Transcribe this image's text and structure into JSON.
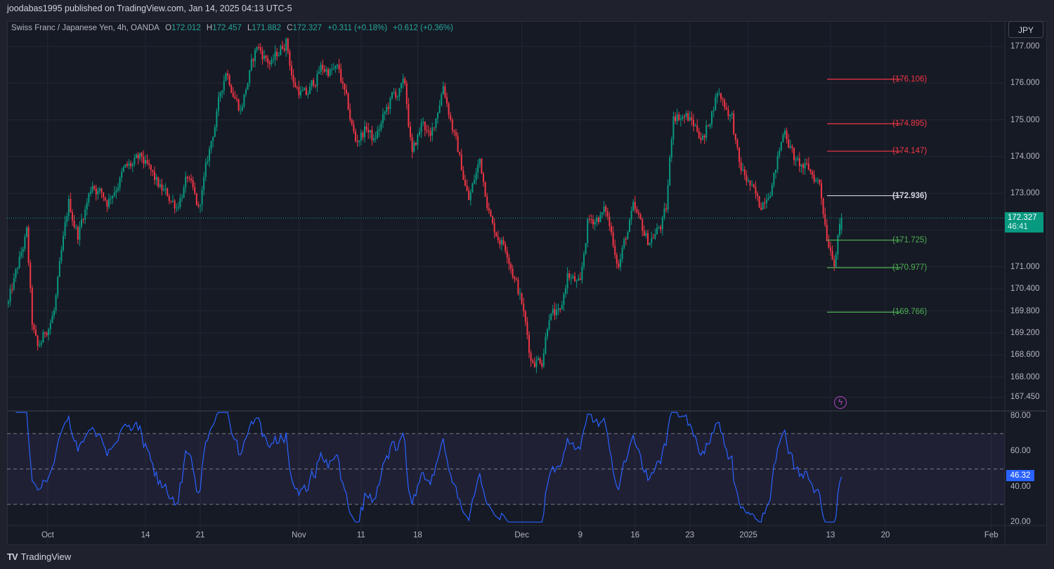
{
  "published": "joodabas1995 published on TradingView.com, Jan 14, 2025 04:13 UTC-5",
  "legend": {
    "symbol": "Swiss Franc / Japanese Yen, 4h, OANDA",
    "o_label": "O",
    "o": "172.012",
    "h_label": "H",
    "h": "172.457",
    "l_label": "L",
    "l": "171.882",
    "c_label": "C",
    "c": "172.327",
    "change": "+0.311 (+0.18%)",
    "change2": "+0.612 (+0.36%)"
  },
  "currency_button": "JPY",
  "current_price": {
    "value": "172.327",
    "countdown": "46:41"
  },
  "brand": "TradingView",
  "colors": {
    "up": "#089981",
    "down": "#f23645",
    "rsi": "#2962ff",
    "resistance": "#f23645",
    "pivot": "#d1d4dc",
    "support": "#4caf50"
  },
  "chart_data": {
    "type": "candlestick",
    "title": "Swiss Franc / Japanese Yen, 4h, OANDA",
    "ylim": [
      167.2,
      177.4
    ],
    "price_ticks": [
      "177.000",
      "176.000",
      "175.000",
      "174.000",
      "173.000",
      "171.000",
      "170.400",
      "169.800",
      "169.200",
      "168.600",
      "168.000",
      "167.450"
    ],
    "price_tick_values": [
      177,
      176,
      175,
      174,
      173,
      171,
      170.4,
      169.8,
      169.2,
      168.6,
      168.0,
      167.45
    ],
    "x_ticks": [
      {
        "label": "Oct",
        "bar": 21.5
      },
      {
        "label": "14",
        "bar": 75
      },
      {
        "label": "21",
        "bar": 105
      },
      {
        "label": "Nov",
        "bar": 159
      },
      {
        "label": "11",
        "bar": 193
      },
      {
        "label": "18",
        "bar": 224
      },
      {
        "label": "Dec",
        "bar": 281
      },
      {
        "label": "9",
        "bar": 313
      },
      {
        "label": "16",
        "bar": 343
      },
      {
        "label": "23",
        "bar": 373
      },
      {
        "label": "2025",
        "bar": 405
      },
      {
        "label": "13",
        "bar": 450
      },
      {
        "label": "20",
        "bar": 480
      },
      {
        "label": "Feb",
        "bar": 538
      }
    ],
    "bar_count": 457,
    "approx_close_path": [
      [
        0,
        170.0
      ],
      [
        10,
        171.9
      ],
      [
        13,
        169.4
      ],
      [
        16,
        168.7
      ],
      [
        25,
        169.8
      ],
      [
        33,
        172.7
      ],
      [
        38,
        171.9
      ],
      [
        46,
        173.3
      ],
      [
        54,
        172.8
      ],
      [
        63,
        173.6
      ],
      [
        73,
        173.9
      ],
      [
        83,
        173.1
      ],
      [
        92,
        172.7
      ],
      [
        98,
        173.4
      ],
      [
        104,
        172.5
      ],
      [
        111,
        174.4
      ],
      [
        119,
        176.4
      ],
      [
        127,
        175.3
      ],
      [
        136,
        177.0
      ],
      [
        144,
        176.5
      ],
      [
        152,
        177.2
      ],
      [
        156,
        176.0
      ],
      [
        163,
        175.6
      ],
      [
        171,
        176.4
      ],
      [
        181,
        176.3
      ],
      [
        190,
        174.4
      ],
      [
        196,
        174.8
      ],
      [
        200,
        174.4
      ],
      [
        210,
        175.6
      ],
      [
        217,
        175.9
      ],
      [
        221,
        174.0
      ],
      [
        227,
        175.0
      ],
      [
        231,
        174.4
      ],
      [
        238,
        176.0
      ],
      [
        244,
        174.6
      ],
      [
        252,
        172.8
      ],
      [
        258,
        173.9
      ],
      [
        265,
        172.1
      ],
      [
        273,
        171.5
      ],
      [
        281,
        170.0
      ],
      [
        286,
        168.5
      ],
      [
        292,
        168.5
      ],
      [
        296,
        169.8
      ],
      [
        302,
        169.6
      ],
      [
        306,
        170.8
      ],
      [
        313,
        170.4
      ],
      [
        317,
        172.2
      ],
      [
        327,
        172.5
      ],
      [
        334,
        171.1
      ],
      [
        342,
        172.5
      ],
      [
        350,
        171.7
      ],
      [
        357,
        172.1
      ],
      [
        360,
        172.5
      ],
      [
        364,
        175.2
      ],
      [
        371,
        175.1
      ],
      [
        381,
        174.5
      ],
      [
        388,
        175.8
      ],
      [
        396,
        175.1
      ],
      [
        400,
        173.7
      ],
      [
        406,
        173.2
      ],
      [
        411,
        172.6
      ],
      [
        419,
        173.5
      ],
      [
        425,
        174.8
      ],
      [
        431,
        173.8
      ],
      [
        438,
        173.6
      ],
      [
        444,
        173.3
      ],
      [
        448,
        171.9
      ],
      [
        452,
        171.3
      ],
      [
        456,
        172.327
      ]
    ],
    "last_candle": {
      "open": 172.012,
      "high": 172.457,
      "low": 171.882,
      "close": 172.327
    },
    "levels": [
      {
        "value": 176.106,
        "label": "(176.106)",
        "kind": "resistance"
      },
      {
        "value": 174.895,
        "label": "(174.895)",
        "kind": "resistance"
      },
      {
        "value": 174.147,
        "label": "(174.147)",
        "kind": "resistance"
      },
      {
        "value": 172.936,
        "label": "(172.936)",
        "kind": "pivot"
      },
      {
        "value": 171.725,
        "label": "(171.725)",
        "kind": "support"
      },
      {
        "value": 170.977,
        "label": "(170.977)",
        "kind": "support"
      },
      {
        "value": 169.766,
        "label": "(169.766)",
        "kind": "support"
      }
    ],
    "rsi": {
      "period": 14,
      "last": "46.32",
      "ylim": [
        17,
        83
      ],
      "ticks": [
        "80.00",
        "60.00",
        "40.00",
        "20.00"
      ],
      "tick_values": [
        80,
        60,
        40,
        20
      ],
      "bands": [
        70,
        50,
        30
      ]
    }
  }
}
